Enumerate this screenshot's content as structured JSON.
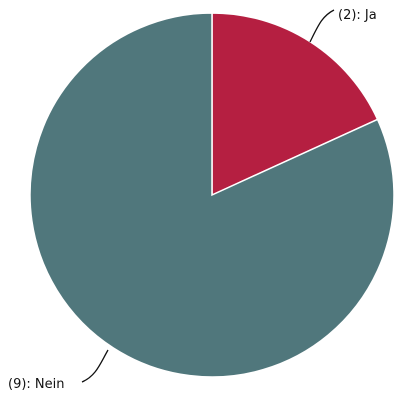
{
  "chart_data": {
    "type": "pie",
    "slices": [
      {
        "category": "Ja",
        "value": 2,
        "label": "(2): Ja",
        "color": "#b51f41"
      },
      {
        "category": "Nein",
        "value": 9,
        "label": "(9): Nein",
        "color": "#50777c"
      }
    ]
  }
}
